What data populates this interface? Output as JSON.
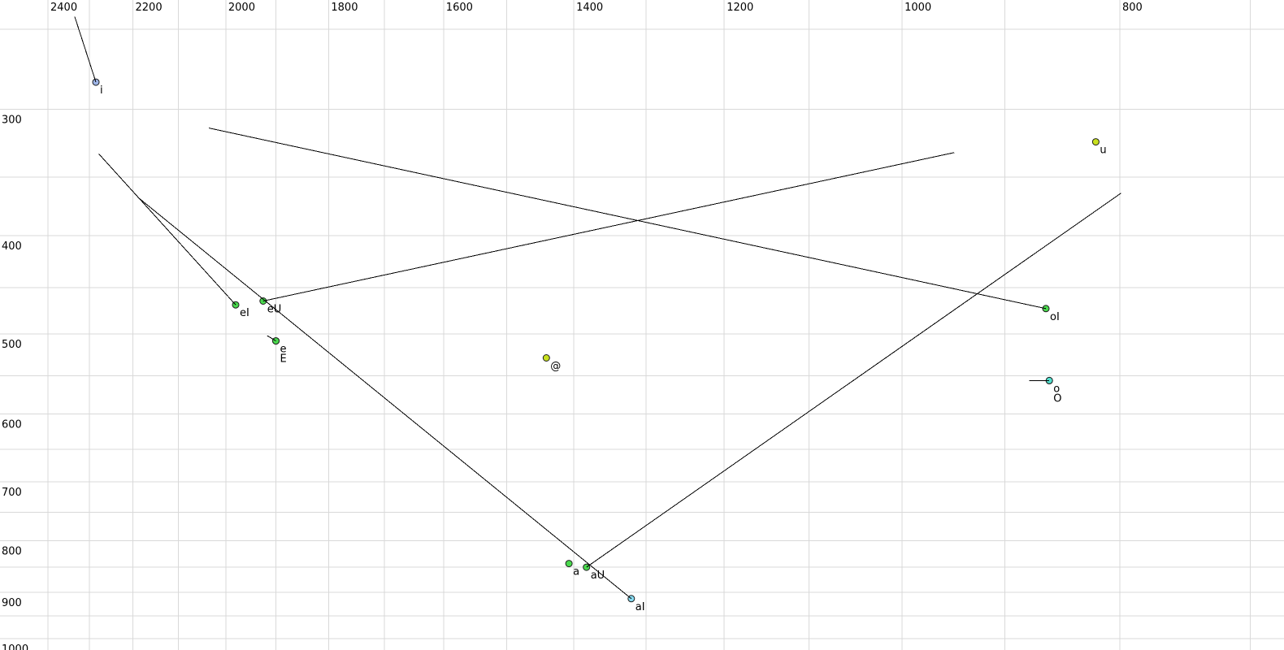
{
  "chart_data": {
    "type": "scatter",
    "title": "",
    "x_axis": {
      "unit_values_shown": [
        2400,
        2200,
        2000,
        1800,
        1600,
        1400,
        1200,
        1000,
        800
      ],
      "scale": "log",
      "direction": "reversed-left-high",
      "grid_min": 700,
      "grid_max": 2400,
      "grid_step": 100
    },
    "y_axis": {
      "unit_values_shown": [
        300,
        400,
        500,
        600,
        700,
        800,
        900,
        1000
      ],
      "scale": "log",
      "direction": "increasing-downward",
      "grid_min": 250,
      "grid_max": 1000,
      "grid_step": 50
    },
    "points": [
      {
        "label": "i",
        "f2": 2285,
        "f1": 282,
        "color": "#9db4e6",
        "glide": {
          "f2": 2335,
          "f1": 243
        }
      },
      {
        "label": "u",
        "f2": 820,
        "f1": 323,
        "color": "#c8e01e"
      },
      {
        "label": "eI",
        "f2": 1980,
        "f1": 468,
        "color": "#49d94d",
        "glide": {
          "f2": 2278,
          "f1": 332
        }
      },
      {
        "label": "eU",
        "f2": 1925,
        "f1": 464,
        "color": "#49d94d",
        "glide": {
          "f2": 948,
          "f1": 331
        }
      },
      {
        "label": "e",
        "f2": 1900,
        "f1": 508,
        "color": "#49d94d",
        "glide": {
          "f2": 1917,
          "f1": 502
        }
      },
      {
        "label": "E",
        "f2": 1900,
        "f1": 508,
        "color": "#49d94d",
        "label_row": 2
      },
      {
        "label": "@",
        "f2": 1440,
        "f1": 528,
        "color": "#c8e01e"
      },
      {
        "label": "oI",
        "f2": 863,
        "f1": 472,
        "color": "#49d94d",
        "glide": {
          "f2": 2035,
          "f1": 313
        }
      },
      {
        "label": "o",
        "f2": 860,
        "f1": 556,
        "color": "#52e0ce",
        "glide": {
          "f2": 878,
          "f1": 556
        }
      },
      {
        "label": "O",
        "f2": 860,
        "f1": 556,
        "color": "#52e0ce",
        "label_row": 2
      },
      {
        "label": "a",
        "f2": 1407,
        "f1": 843,
        "color": "#49d94d"
      },
      {
        "label": "aU",
        "f2": 1382,
        "f1": 850,
        "color": "#49d94d",
        "glide": {
          "f2": 799,
          "f1": 363
        }
      },
      {
        "label": "aI",
        "f2": 1320,
        "f1": 913,
        "color": "#85d9ef",
        "glide": {
          "f2": 2190,
          "f1": 366
        }
      }
    ],
    "colors": {
      "background": "#ffffff",
      "grid": "#d9d9d9",
      "glide_line": "#000000",
      "point_outline": "#1f1f1f",
      "text": "#000000"
    }
  }
}
